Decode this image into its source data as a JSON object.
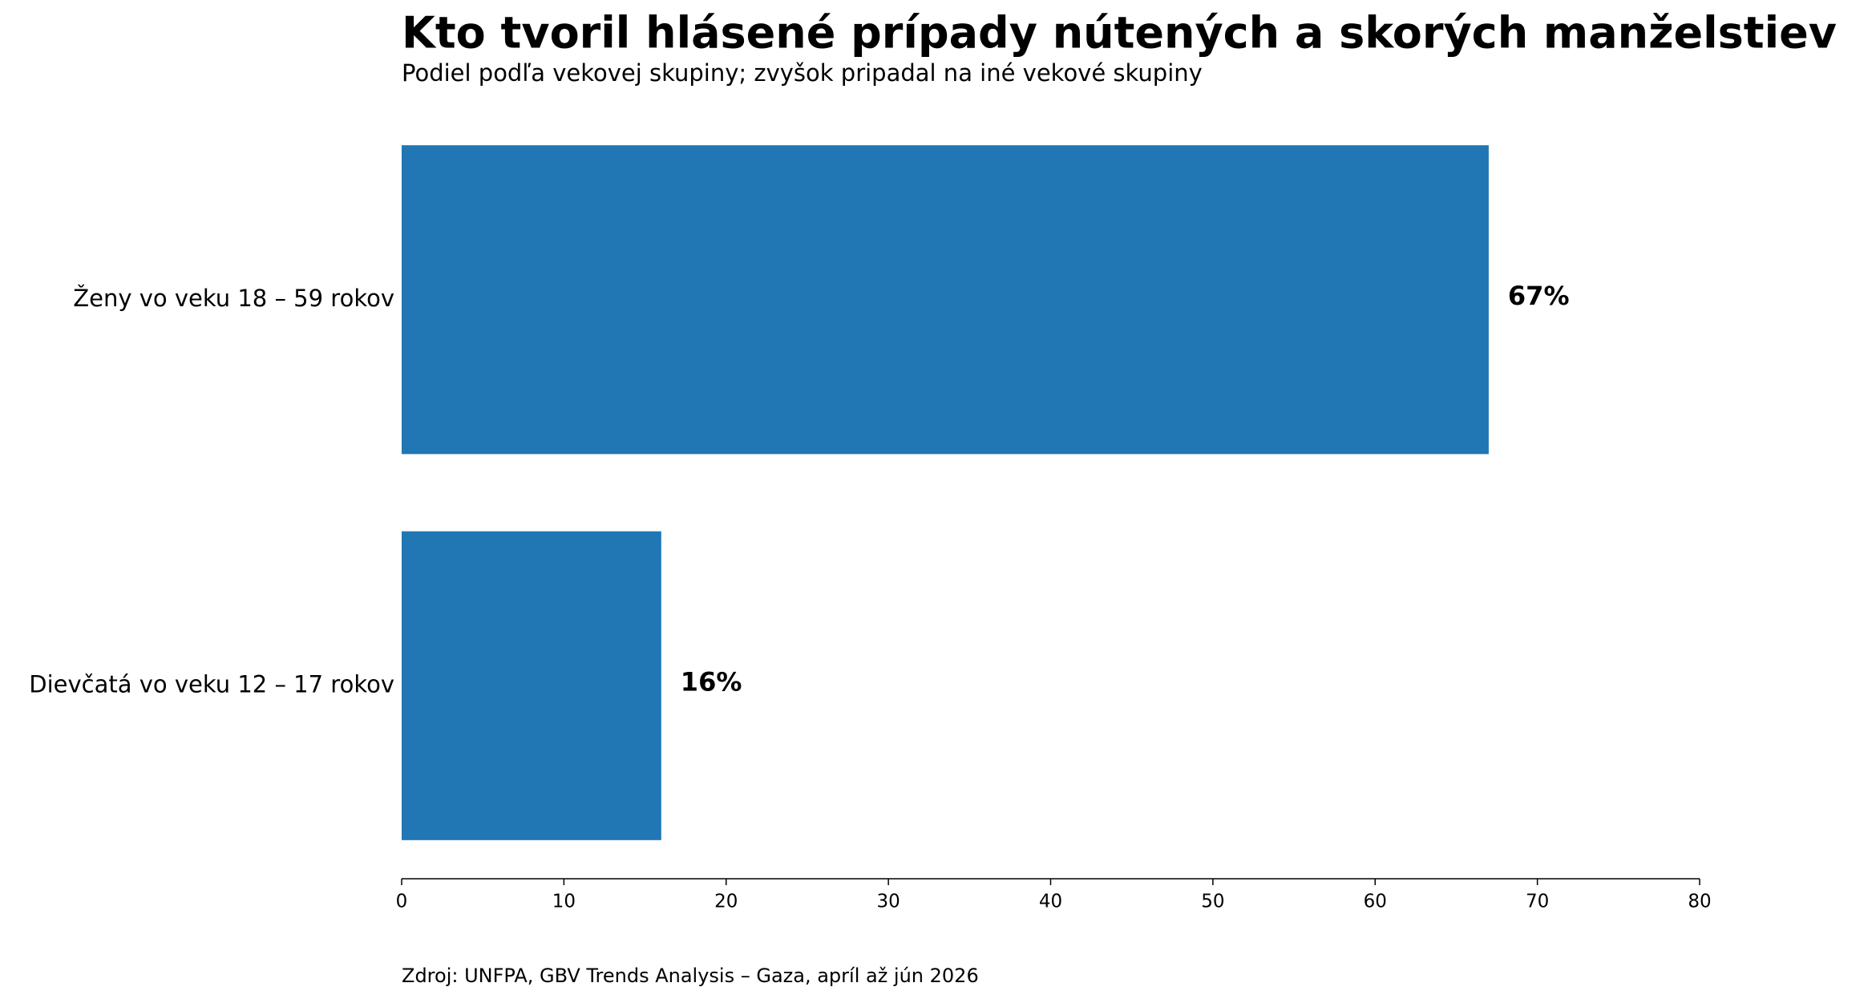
{
  "chart_data": {
    "type": "barh",
    "title": "Kto tvoril hlásené prípady nútených a skorých manželstiev",
    "subtitle": "Podiel podľa vekovej skupiny; zvyšok pripadal na iné vekové skupiny",
    "source": "Zdroj: UNFPA, GBV Trends Analysis – Gaza, apríl až jún 2026",
    "categories": [
      "Ženy vo veku 18 – 59 rokov",
      "Dievčatá vo veku 12 – 17 rokov"
    ],
    "values": [
      67,
      16
    ],
    "value_labels": [
      "67%",
      "16%"
    ],
    "color": "#2077b4",
    "xlim": [
      0,
      80
    ],
    "xticks": [
      0,
      10,
      20,
      30,
      40,
      50,
      60,
      70,
      80
    ],
    "grid": false
  }
}
